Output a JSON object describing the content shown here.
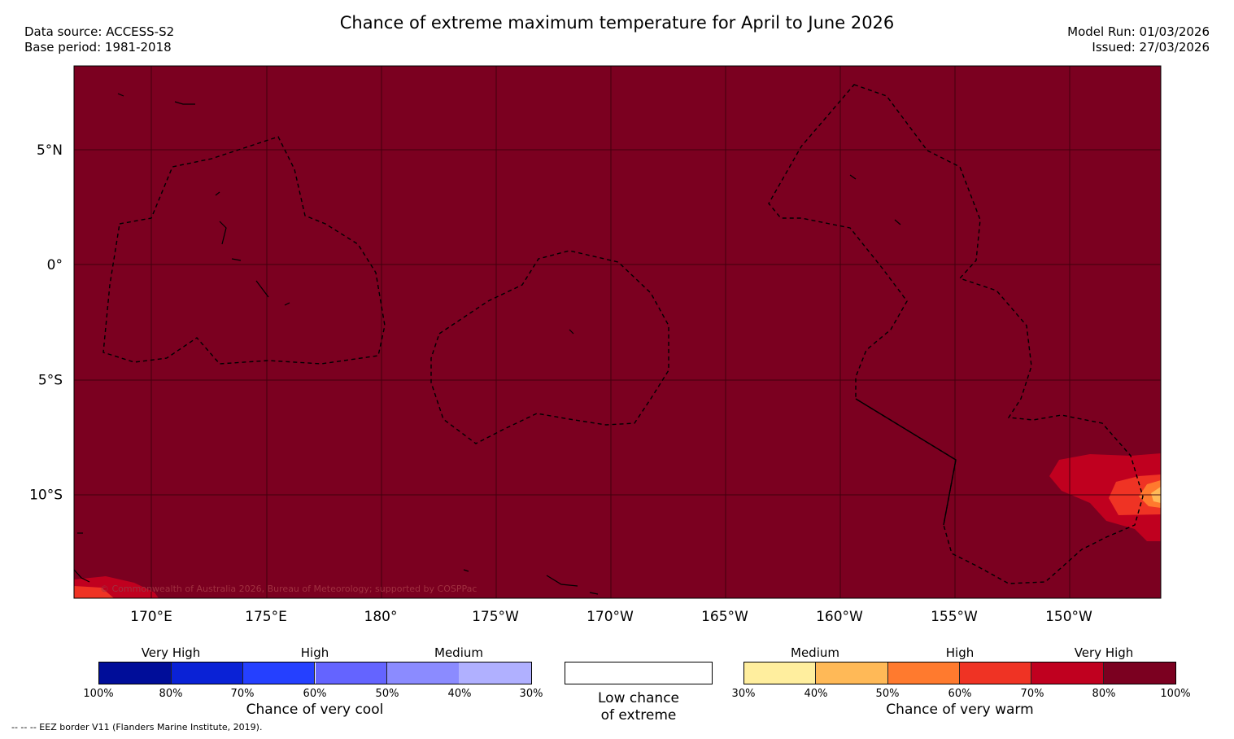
{
  "title": "Chance of extreme maximum temperature for April to June 2026",
  "data_source": "Data source: ACCESS-S2",
  "base_period": "Base period: 1981-2018",
  "model_run": "Model Run: 01/03/2026",
  "issued": "Issued: 27/03/2026",
  "copyright": "© Commonwealth of Australia 2026, Bureau of Meteorology; supported by COSPPac",
  "footnote": "--  --  -- EEZ border V11 (Flanders Marine Institute, 2019).",
  "map": {
    "lat_labels": [
      {
        "label": "5°N",
        "lat": 5
      },
      {
        "label": "0°",
        "lat": 0
      },
      {
        "label": "5°S",
        "lat": -5
      },
      {
        "label": "10°S",
        "lat": -10
      }
    ],
    "lon_labels": [
      {
        "label": "170°E",
        "lon": 170
      },
      {
        "label": "175°E",
        "lon": 175
      },
      {
        "label": "180°",
        "lon": 180
      },
      {
        "label": "175°W",
        "lon": 185
      },
      {
        "label": "170°W",
        "lon": 190
      },
      {
        "label": "165°W",
        "lon": 195
      },
      {
        "label": "160°W",
        "lon": 200
      },
      {
        "label": "155°W",
        "lon": 205
      },
      {
        "label": "150°W",
        "lon": 210
      }
    ],
    "base_color": "#7b0020"
  },
  "cool_scale": {
    "title": "Chance of very cool",
    "categories": [
      "Very High",
      "High",
      "Medium"
    ],
    "ticks": [
      "100%",
      "80%",
      "70%",
      "60%",
      "50%",
      "40%",
      "30%"
    ],
    "colors": [
      "#000d99",
      "#0a22d6",
      "#2540ff",
      "#6464ff",
      "#8b8bff",
      "#b0b0ff"
    ]
  },
  "low_chance": {
    "line1": "Low chance",
    "line2": "of extreme",
    "color": "#ffffff"
  },
  "warm_scale": {
    "title": "Chance of very warm",
    "categories": [
      "Medium",
      "High",
      "Very High"
    ],
    "ticks": [
      "30%",
      "40%",
      "50%",
      "60%",
      "70%",
      "80%",
      "100%"
    ],
    "colors": [
      "#ffee9e",
      "#ffb957",
      "#ff7a2e",
      "#ef3324",
      "#c0001f",
      "#7b0020"
    ]
  }
}
